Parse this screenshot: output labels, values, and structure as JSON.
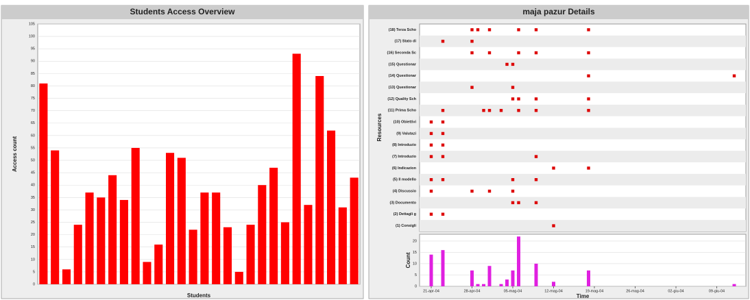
{
  "chart_data": [
    {
      "type": "bar",
      "title": "Students Access Overview",
      "xlabel": "Students",
      "ylabel": "Access count",
      "categories": [
        null,
        null,
        null,
        null,
        null,
        null,
        null,
        null,
        null,
        null,
        null,
        null,
        null,
        null,
        null,
        null,
        null,
        null,
        null,
        null,
        null,
        null,
        null,
        null,
        null,
        null,
        null,
        null
      ],
      "values": [
        81,
        54,
        6,
        24,
        37,
        35,
        44,
        34,
        55,
        9,
        16,
        53,
        51,
        22,
        37,
        37,
        23,
        5,
        24,
        40,
        47,
        25,
        93,
        32,
        84,
        62,
        31,
        43
      ],
      "color": "#ff0000",
      "ylim": [
        0,
        105
      ],
      "yticks": [
        0,
        5,
        10,
        15,
        20,
        25,
        30,
        35,
        40,
        45,
        50,
        55,
        60,
        65,
        70,
        75,
        80,
        85,
        90,
        95,
        100,
        105
      ],
      "grid": true
    },
    {
      "type": "timeline",
      "title": "maja pazur Details",
      "ylabel": "Resources",
      "color": "#dd0000",
      "xlim": [
        "19-apr-04",
        "14-giu-04"
      ],
      "categories": [
        "(18) Terza Scho",
        "(17) Stato di",
        "(16) Seconda Sc",
        "(15) Questionar",
        "(14) Questionar",
        "(13) Questionar",
        "(12) Quality Sch",
        "(11) Prima Scho",
        "(10) Obiettivi",
        "(9) Valutazi",
        "(8) Introduzio",
        "(7) Introduzio",
        "(6) Indicazion",
        "(5) Il modello",
        "(4) Discussio",
        "(3) Documento",
        "(2) Dettagli g",
        "(1) Consigli"
      ],
      "dates": [
        [
          "28-apr-04",
          "29-apr-04",
          "01-mag-04",
          "06-mag-04",
          "09-mag-04",
          "18-mag-04"
        ],
        [
          "23-apr-04",
          "28-apr-04"
        ],
        [
          "28-apr-04",
          "01-mag-04",
          "06-mag-04",
          "09-mag-04",
          "18-mag-04"
        ],
        [
          "04-mag-04",
          "05-mag-04"
        ],
        [
          "18-mag-04",
          "12-giu-04"
        ],
        [
          "28-apr-04",
          "05-mag-04"
        ],
        [
          "05-mag-04",
          "06-mag-04",
          "09-mag-04",
          "18-mag-04"
        ],
        [
          "23-apr-04",
          "30-apr-04",
          "01-mag-04",
          "03-mag-04",
          "06-mag-04",
          "09-mag-04",
          "18-mag-04"
        ],
        [
          "21-apr-04",
          "23-apr-04"
        ],
        [
          "21-apr-04",
          "23-apr-04"
        ],
        [
          "21-apr-04",
          "23-apr-04"
        ],
        [
          "21-apr-04",
          "23-apr-04",
          "09-mag-04"
        ],
        [
          "12-mag-04",
          "18-mag-04"
        ],
        [
          "21-apr-04",
          "23-apr-04",
          "05-mag-04",
          "09-mag-04"
        ],
        [
          "21-apr-04",
          "28-apr-04",
          "01-mag-04",
          "05-mag-04"
        ],
        [
          "05-mag-04",
          "06-mag-04",
          "09-mag-04"
        ],
        [
          "21-apr-04",
          "23-apr-04"
        ],
        [
          "12-mag-04"
        ]
      ]
    },
    {
      "type": "datebar",
      "xlabel": "Time",
      "ylabel": "Count",
      "color": "#e020e0",
      "x": [
        "21-apr-04",
        "23-apr-04",
        "28-apr-04",
        "29-apr-04",
        "30-apr-04",
        "01-mag-04",
        "03-mag-04",
        "04-mag-04",
        "05-mag-04",
        "06-mag-04",
        "09-mag-04",
        "12-mag-04",
        "18-mag-04",
        "12-giu-04"
      ],
      "values": [
        14,
        16,
        7,
        1,
        1,
        9,
        1,
        3,
        7,
        22,
        10,
        2,
        7,
        1
      ],
      "xlim": [
        "19-apr-04",
        "14-giu-04"
      ],
      "xticks": [
        "21-apr-04",
        "28-apr-04",
        "05-mag-04",
        "12-mag-04",
        "19-mag-04",
        "26-mag-04",
        "02-giu-04",
        "09-giu-04"
      ],
      "ylim": [
        0,
        23
      ],
      "yticks": [
        0,
        5,
        10,
        15,
        20
      ],
      "grid": true
    }
  ]
}
